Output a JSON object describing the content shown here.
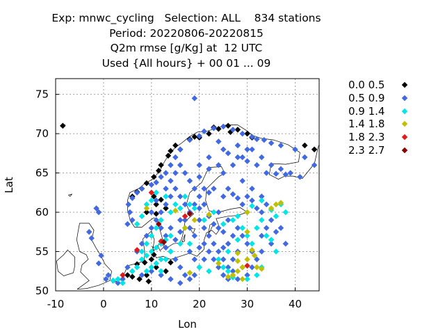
{
  "title": {
    "line1": "Exp: mnwc_cycling   Selection: ALL    834 stations",
    "line2": "Period: 20220806-20220815",
    "line3": "Q2m rmse [g/Kg] at  12 UTC",
    "line4": "Used {All hours} + 00 01 ... 09"
  },
  "chart_data": {
    "type": "scatter",
    "xlabel": "Lon",
    "ylabel": "Lat",
    "xlim": [
      -10,
      45
    ],
    "ylim": [
      50,
      77
    ],
    "xticks": [
      -10,
      0,
      10,
      20,
      30,
      40
    ],
    "yticks": [
      50,
      55,
      60,
      65,
      70,
      75
    ],
    "grid": true,
    "legend_position": "right",
    "series": [
      {
        "name": "0.0 0.5",
        "color": "#000000",
        "points": [
          [
            -8.5,
            71
          ],
          [
            18,
            69.3
          ],
          [
            15,
            68.5
          ],
          [
            14,
            67.8
          ],
          [
            13.5,
            67.2
          ],
          [
            16,
            68
          ],
          [
            20,
            69.5
          ],
          [
            22,
            70
          ],
          [
            23,
            70.8
          ],
          [
            26,
            71
          ],
          [
            28,
            70.5
          ],
          [
            30,
            70
          ],
          [
            31,
            69.5
          ],
          [
            26.5,
            70.2
          ],
          [
            24,
            70.6
          ],
          [
            19,
            69.6
          ],
          [
            12,
            66
          ],
          [
            11.5,
            65.3
          ],
          [
            10.5,
            64.5
          ],
          [
            9,
            63.7
          ],
          [
            8,
            63
          ],
          [
            7,
            62.6
          ],
          [
            6,
            62
          ],
          [
            10.5,
            62
          ],
          [
            11,
            61
          ],
          [
            9,
            60
          ],
          [
            11,
            59.8
          ],
          [
            13,
            60.5
          ],
          [
            12,
            61.6
          ],
          [
            42,
            68.5
          ],
          [
            44,
            68
          ],
          [
            46,
            67.7
          ],
          [
            10.5,
            54.6
          ],
          [
            10,
            54
          ],
          [
            8.6,
            53.6
          ],
          [
            7,
            53.4
          ],
          [
            5,
            52
          ],
          [
            6,
            51.8
          ],
          [
            7.5,
            51.5
          ],
          [
            9,
            52
          ],
          [
            9.4,
            51.2
          ],
          [
            11,
            53
          ],
          [
            13,
            52.5
          ],
          [
            14,
            53.6
          ]
        ]
      },
      {
        "name": "0.5 0.9",
        "color": "#4169e1",
        "points": [
          [
            19,
            74.5
          ],
          [
            -1.5,
            60.5
          ],
          [
            -1,
            60
          ],
          [
            -3,
            57.5
          ],
          [
            -2.5,
            56.7
          ],
          [
            -0.5,
            54.5
          ],
          [
            -1,
            53.5
          ],
          [
            1,
            52
          ],
          [
            0.5,
            51.5
          ],
          [
            2,
            51.3
          ],
          [
            5,
            58.5
          ],
          [
            6,
            59
          ],
          [
            5.5,
            60
          ],
          [
            5.2,
            61
          ],
          [
            6,
            61.8
          ],
          [
            7,
            62.5
          ],
          [
            8,
            63
          ],
          [
            10,
            63.5
          ],
          [
            11,
            63.8
          ],
          [
            12,
            64.5
          ],
          [
            13,
            65
          ],
          [
            14,
            66
          ],
          [
            15,
            67
          ],
          [
            16,
            68
          ],
          [
            18,
            69.2
          ],
          [
            20,
            69.7
          ],
          [
            21,
            70.3
          ],
          [
            23,
            70.7
          ],
          [
            25,
            70.9
          ],
          [
            27,
            70.5
          ],
          [
            29,
            70
          ],
          [
            31,
            69.6
          ],
          [
            32,
            69.3
          ],
          [
            33.5,
            69.2
          ],
          [
            35,
            68.8
          ],
          [
            37,
            68.5
          ],
          [
            40,
            68
          ],
          [
            42,
            67
          ],
          [
            44,
            66
          ],
          [
            41,
            64.5
          ],
          [
            38,
            64.8
          ],
          [
            36,
            64.9
          ],
          [
            34,
            65
          ],
          [
            32,
            66
          ],
          [
            30,
            66.5
          ],
          [
            28,
            67
          ],
          [
            26,
            67.5
          ],
          [
            25,
            68
          ],
          [
            24,
            66
          ],
          [
            22,
            65.5
          ],
          [
            20,
            64.5
          ],
          [
            21,
            63
          ],
          [
            22,
            62.5
          ],
          [
            23,
            63
          ],
          [
            25,
            62
          ],
          [
            26,
            63
          ],
          [
            27,
            62.3
          ],
          [
            28,
            61.8
          ],
          [
            29,
            61
          ],
          [
            30,
            62
          ],
          [
            31,
            61.5
          ],
          [
            32,
            60.5
          ],
          [
            33,
            60
          ],
          [
            35,
            59
          ],
          [
            36,
            57.5
          ],
          [
            37,
            58
          ],
          [
            38,
            56
          ],
          [
            35,
            56
          ],
          [
            33,
            55
          ],
          [
            32,
            54
          ],
          [
            31,
            53
          ],
          [
            30,
            52
          ],
          [
            28,
            51.5
          ],
          [
            27,
            52.5
          ],
          [
            26,
            53
          ],
          [
            25,
            54
          ],
          [
            24,
            55
          ],
          [
            23,
            56
          ],
          [
            22,
            57
          ],
          [
            21,
            58
          ],
          [
            20,
            59
          ],
          [
            18,
            60
          ],
          [
            17,
            61
          ],
          [
            16,
            62
          ],
          [
            15,
            63
          ],
          [
            14,
            62
          ],
          [
            13,
            61
          ],
          [
            12,
            60
          ],
          [
            11,
            59
          ],
          [
            10,
            58
          ],
          [
            9,
            57
          ],
          [
            8,
            56
          ],
          [
            7,
            55
          ],
          [
            12,
            56
          ],
          [
            13,
            55.5
          ],
          [
            14,
            55
          ],
          [
            15,
            54
          ],
          [
            16,
            53
          ],
          [
            17,
            52
          ],
          [
            18,
            51.5
          ],
          [
            19,
            52
          ],
          [
            20,
            53
          ],
          [
            21,
            54
          ],
          [
            22,
            55
          ],
          [
            23,
            54
          ],
          [
            24,
            53
          ],
          [
            25,
            52
          ],
          [
            26,
            51.5
          ],
          [
            19,
            57
          ],
          [
            18,
            58
          ],
          [
            17,
            59
          ],
          [
            16,
            57.5
          ],
          [
            15,
            56.5
          ],
          [
            21,
            61
          ],
          [
            20,
            62
          ],
          [
            19,
            63
          ],
          [
            18,
            64
          ],
          [
            17,
            65
          ],
          [
            25,
            65
          ],
          [
            27,
            66
          ],
          [
            29,
            67
          ],
          [
            31,
            68
          ],
          [
            24,
            60
          ],
          [
            26,
            59
          ],
          [
            28,
            58
          ],
          [
            29,
            57
          ],
          [
            30,
            56
          ],
          [
            31,
            55
          ],
          [
            27,
            57
          ],
          [
            25,
            57.5
          ],
          [
            23,
            58.5
          ],
          [
            22,
            59.5
          ],
          [
            20,
            60.5
          ],
          [
            19,
            61
          ],
          [
            24,
            58
          ],
          [
            26,
            56
          ],
          [
            28,
            55
          ],
          [
            20,
            66
          ],
          [
            22,
            67
          ],
          [
            24,
            69
          ],
          [
            28,
            68.5
          ],
          [
            30,
            68
          ],
          [
            33,
            67
          ],
          [
            35,
            66
          ],
          [
            37,
            65.5
          ],
          [
            39,
            65
          ],
          [
            10,
            60
          ],
          [
            11,
            61.5
          ],
          [
            13,
            63
          ],
          [
            14,
            64
          ],
          [
            15,
            65
          ],
          [
            16,
            66
          ],
          [
            29,
            64
          ],
          [
            31,
            63
          ],
          [
            33,
            62
          ],
          [
            34,
            61
          ],
          [
            12,
            58
          ],
          [
            13,
            57
          ],
          [
            14,
            58
          ],
          [
            16,
            59
          ],
          [
            18,
            55
          ],
          [
            19,
            54
          ],
          [
            20,
            55.5
          ],
          [
            21,
            56
          ],
          [
            25,
            55.5
          ],
          [
            27,
            54
          ],
          [
            29,
            53
          ],
          [
            33,
            57
          ],
          [
            34,
            58
          ],
          [
            6,
            52.5
          ],
          [
            8,
            52
          ],
          [
            10,
            52.5
          ],
          [
            12,
            52
          ],
          [
            14,
            51.5
          ],
          [
            16,
            51
          ],
          [
            5,
            53
          ],
          [
            4,
            51.5
          ],
          [
            3,
            51
          ]
        ]
      },
      {
        "name": "0.9 1.4",
        "color": "#00e5e5",
        "points": [
          [
            2,
            51.3
          ],
          [
            3,
            51.5
          ],
          [
            4,
            51
          ],
          [
            6,
            52.5
          ],
          [
            7,
            53
          ],
          [
            8,
            54
          ],
          [
            9,
            54.5
          ],
          [
            10,
            55
          ],
          [
            11,
            55.5
          ],
          [
            12,
            56
          ],
          [
            13,
            56.5
          ],
          [
            14,
            57
          ],
          [
            9,
            56
          ],
          [
            8,
            55
          ],
          [
            10,
            57
          ],
          [
            11,
            58
          ],
          [
            12,
            59
          ],
          [
            10,
            53
          ],
          [
            11,
            53.5
          ],
          [
            12,
            54
          ],
          [
            13,
            54
          ],
          [
            14,
            55
          ],
          [
            12,
            52.5
          ],
          [
            9,
            52.5
          ],
          [
            18,
            56
          ],
          [
            17,
            58
          ],
          [
            16,
            56
          ],
          [
            20,
            53
          ],
          [
            22,
            52.5
          ],
          [
            26,
            55
          ],
          [
            28,
            56.5
          ],
          [
            30,
            57
          ],
          [
            32,
            58
          ],
          [
            33,
            59
          ],
          [
            34,
            57
          ],
          [
            31,
            56
          ],
          [
            29,
            58
          ],
          [
            27,
            59
          ],
          [
            35,
            56.5
          ],
          [
            36,
            55
          ],
          [
            33,
            53
          ],
          [
            32,
            52
          ],
          [
            30,
            51.5
          ],
          [
            23,
            60
          ],
          [
            21,
            59
          ],
          [
            19,
            60.5
          ],
          [
            18,
            61
          ],
          [
            17,
            62
          ],
          [
            8,
            59.5
          ],
          [
            9,
            61
          ],
          [
            10,
            61.5
          ],
          [
            11,
            62.5
          ],
          [
            7,
            58.5
          ],
          [
            14,
            60
          ],
          [
            15,
            61
          ],
          [
            16,
            60.5
          ],
          [
            13,
            62
          ],
          [
            25,
            58.5
          ],
          [
            28,
            59.5
          ],
          [
            30,
            60
          ],
          [
            31,
            60.8
          ],
          [
            33,
            61.5
          ],
          [
            35,
            60.3
          ],
          [
            36,
            59.5
          ],
          [
            37,
            61
          ],
          [
            38,
            60
          ],
          [
            24,
            54
          ],
          [
            25,
            53
          ],
          [
            26,
            52.5
          ],
          [
            27,
            51.7
          ]
        ]
      },
      {
        "name": "1.4 1.8",
        "color": "#c0c000",
        "points": [
          [
            9,
            60.5
          ],
          [
            15,
            60.2
          ],
          [
            17,
            58
          ],
          [
            19,
            59
          ],
          [
            22,
            59.7
          ],
          [
            30,
            57.5
          ],
          [
            31,
            55.2
          ],
          [
            31.5,
            54.5
          ],
          [
            30,
            54
          ],
          [
            29,
            53
          ],
          [
            28,
            52.5
          ],
          [
            27,
            52
          ],
          [
            29,
            51.5
          ],
          [
            32,
            53
          ],
          [
            28,
            53.8
          ],
          [
            28,
            54.8
          ],
          [
            33,
            52.8
          ],
          [
            24,
            53.5
          ],
          [
            26,
            51.8
          ],
          [
            35,
            60.5
          ],
          [
            36,
            61
          ],
          [
            37,
            61.2
          ],
          [
            30,
            60
          ],
          [
            18,
            52.3
          ]
        ]
      },
      {
        "name": "1.8 2.3",
        "color": "#e31a1c",
        "points": [
          [
            10,
            62.5
          ],
          [
            7,
            55.2
          ],
          [
            4,
            52
          ],
          [
            30,
            53.2
          ],
          [
            17,
            59.5
          ],
          [
            12,
            56.3
          ]
        ]
      },
      {
        "name": "2.3 2.7",
        "color": "#8b0000",
        "points": [
          [
            18,
            59.8
          ],
          [
            12.6,
            56.2
          ],
          [
            11.5,
            58.5
          ]
        ]
      }
    ]
  }
}
